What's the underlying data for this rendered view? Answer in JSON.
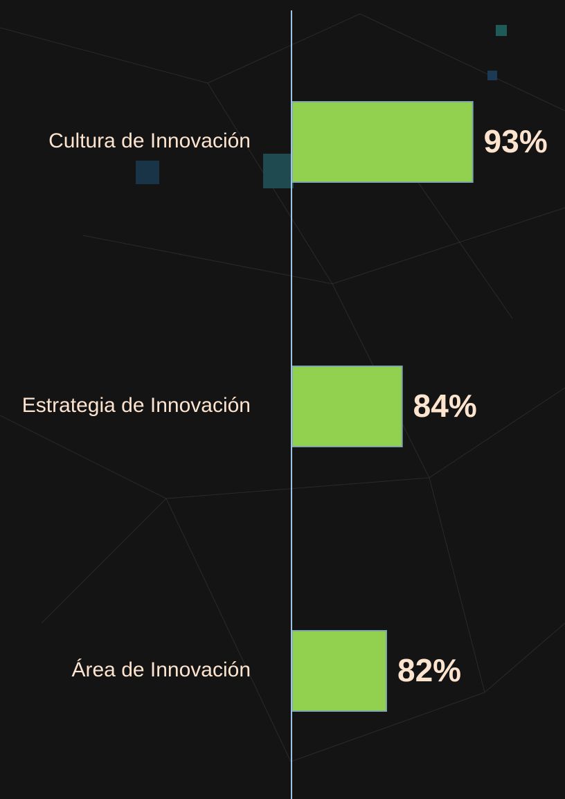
{
  "chart_data": {
    "type": "hbar",
    "categories": [
      "Cultura de Innovación",
      "Estrategia de Innovación",
      "Área de Innovación"
    ],
    "values": [
      93,
      84,
      82
    ],
    "value_labels": [
      "93%",
      "84%",
      "82%"
    ],
    "color": "#92d050",
    "xlim": [
      70,
      100
    ]
  }
}
